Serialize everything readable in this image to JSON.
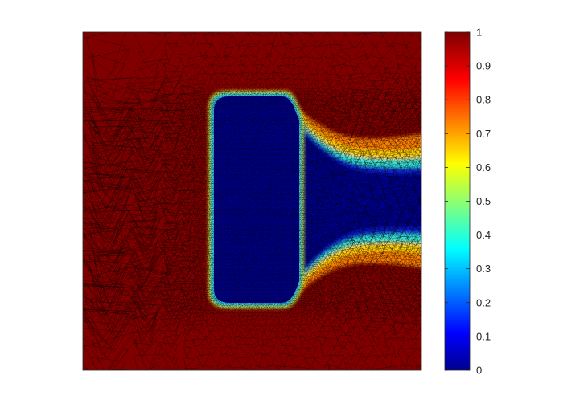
{
  "chart_data": {
    "type": "heatmap",
    "title": "",
    "xlabel": "",
    "ylabel": "",
    "axes_visible": false,
    "mesh": "triangular, refined near the obstacle boundary and in the wake",
    "field_description": "value ~1 in free field, ~0 inside a rounded-rectangle obstacle and in a channel-shaped wake extending to the right edge; thin transition bands at the boundaries",
    "colormap": "jet",
    "colorbar": {
      "location": "right",
      "range": [
        0,
        1
      ],
      "ticks": [
        0,
        0.1,
        0.2,
        0.3,
        0.4,
        0.5,
        0.6,
        0.7,
        0.8,
        0.9,
        1
      ],
      "tick_labels": [
        "0",
        "0.1",
        "0.2",
        "0.3",
        "0.4",
        "0.5",
        "0.6",
        "0.7",
        "0.8",
        "0.9",
        "1"
      ]
    },
    "colors": {
      "high": "#800000",
      "low": "#00008f",
      "mesh_line": "#000000"
    }
  }
}
